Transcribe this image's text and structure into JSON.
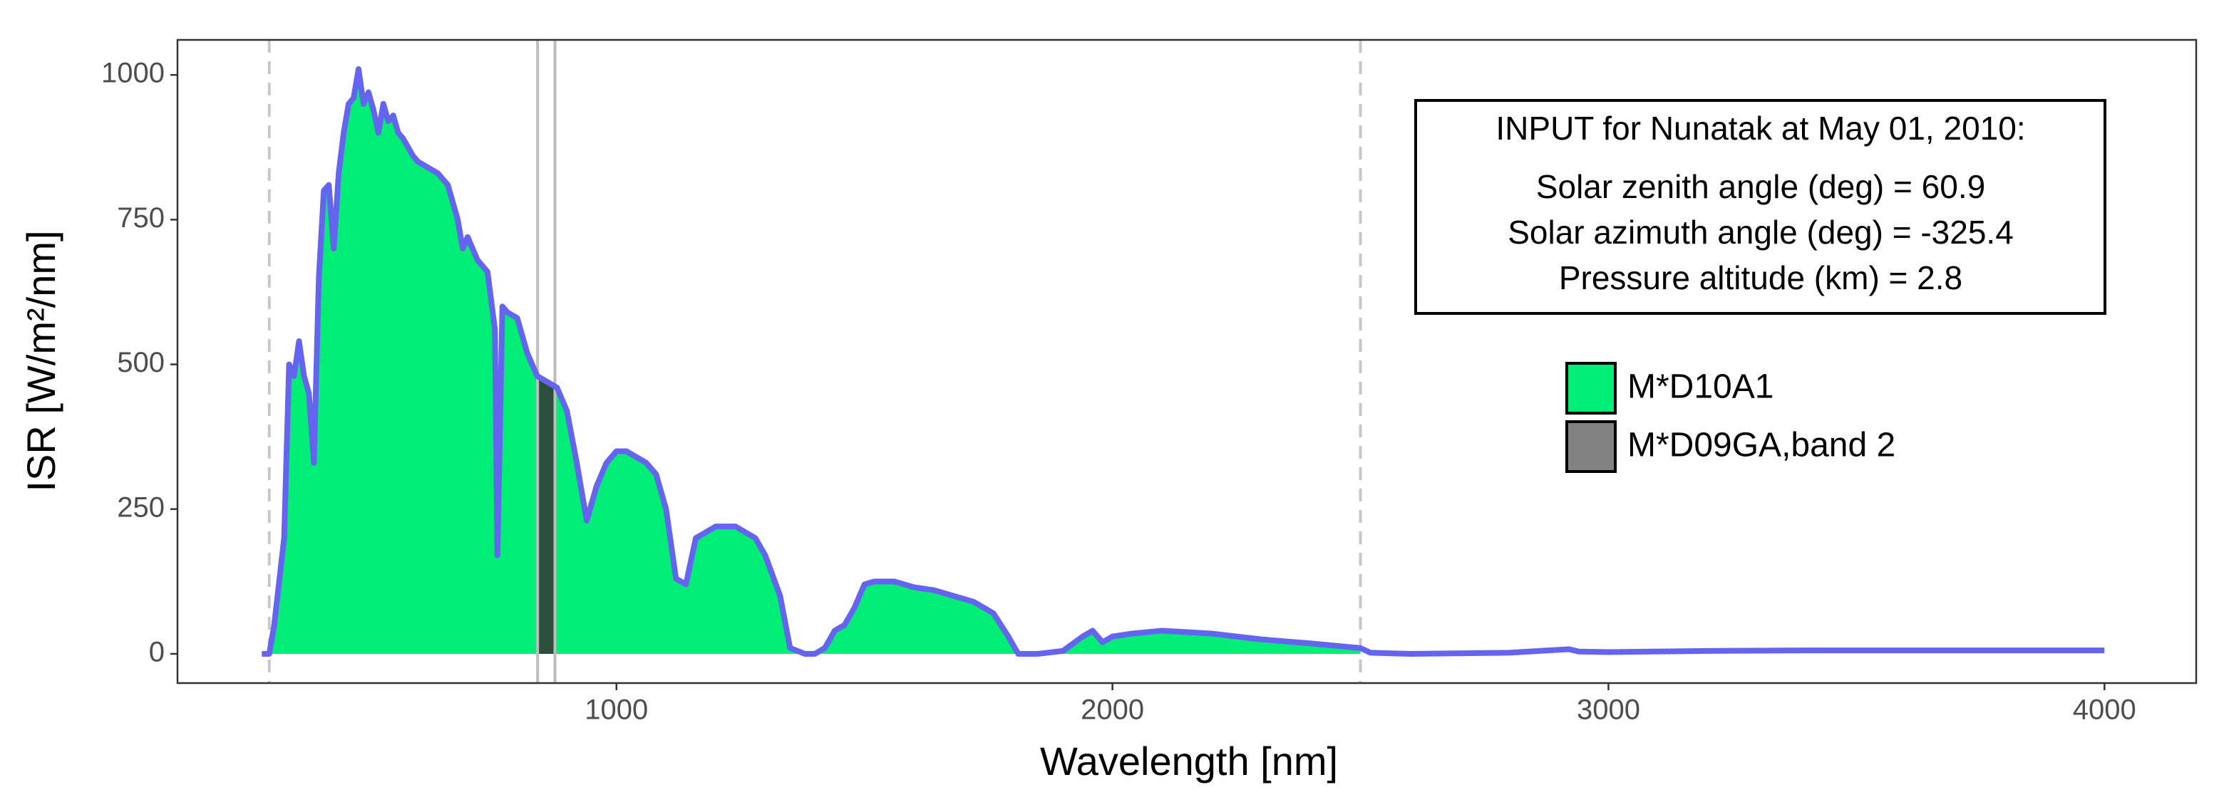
{
  "chart_data": {
    "type": "area",
    "x_label": "Wavelength [nm]",
    "y_label": "ISR [W/m²/nm]",
    "color": "#6464f0",
    "x": [
      285,
      300,
      310,
      330,
      340,
      350,
      360,
      370,
      380,
      390,
      400,
      410,
      420,
      430,
      440,
      450,
      460,
      470,
      480,
      490,
      500,
      510,
      520,
      530,
      540,
      550,
      560,
      570,
      590,
      600,
      620,
      640,
      660,
      680,
      690,
      700,
      720,
      740,
      755,
      760,
      770,
      780,
      800,
      820,
      840,
      860,
      880,
      900,
      920,
      940,
      960,
      980,
      1000,
      1020,
      1040,
      1060,
      1080,
      1100,
      1120,
      1140,
      1160,
      1180,
      1200,
      1240,
      1260,
      1280,
      1300,
      1330,
      1350,
      1380,
      1400,
      1420,
      1440,
      1460,
      1480,
      1500,
      1520,
      1560,
      1600,
      1640,
      1680,
      1720,
      1760,
      1790,
      1810,
      1850,
      1900,
      1940,
      1960,
      1980,
      2000,
      2040,
      2100,
      2200,
      2300,
      2400,
      2500,
      2520,
      2600,
      2800,
      2920,
      2940,
      3000,
      3200,
      3400,
      3600,
      3800,
      4000
    ],
    "values": [
      0,
      0,
      50,
      200,
      500,
      480,
      540,
      480,
      450,
      330,
      650,
      800,
      810,
      700,
      830,
      900,
      950,
      960,
      1010,
      950,
      970,
      940,
      900,
      950,
      920,
      930,
      900,
      890,
      860,
      850,
      840,
      830,
      810,
      750,
      700,
      720,
      680,
      660,
      560,
      170,
      600,
      590,
      580,
      520,
      480,
      470,
      460,
      420,
      330,
      230,
      290,
      330,
      350,
      350,
      340,
      330,
      310,
      250,
      130,
      120,
      200,
      210,
      220,
      220,
      210,
      200,
      170,
      100,
      10,
      0,
      0,
      10,
      40,
      50,
      80,
      120,
      125,
      125,
      115,
      110,
      100,
      90,
      70,
      30,
      0,
      0,
      5,
      30,
      40,
      20,
      30,
      35,
      40,
      35,
      25,
      18,
      10,
      2,
      0,
      2,
      8,
      4,
      3,
      5,
      6,
      6,
      6,
      6
    ],
    "bands": [
      {
        "name": "M*D10A1",
        "color": "#00ee76",
        "range": [
          300,
          2500
        ],
        "line": "dashed"
      },
      {
        "name": "M*D09GA,band 2",
        "color": "#333333",
        "range": [
          841,
          876
        ],
        "line": "solid"
      }
    ],
    "xlim": [
      115,
      4185
    ],
    "ylim": [
      -50.5,
      1060.5
    ],
    "xticks": [
      1000,
      2000,
      3000,
      4000
    ],
    "yticks": [
      0,
      250,
      500,
      750,
      1000
    ],
    "annotation": {
      "title": "INPUT for Nunatak at May 01, 2010:",
      "lines": [
        "Solar zenith angle (deg) = 60.9",
        "Solar azimuth angle (deg) = -325.4",
        "Pressure altitude (km) = 2.8"
      ]
    }
  }
}
